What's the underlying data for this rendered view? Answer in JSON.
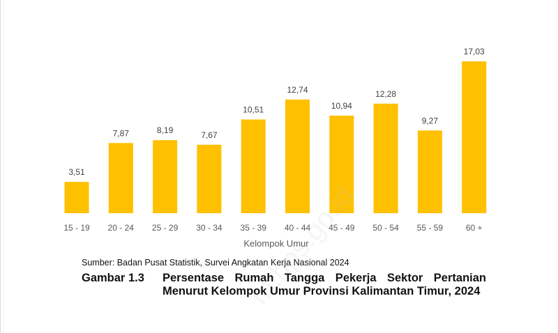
{
  "chart_data": {
    "type": "bar",
    "title": "",
    "xlabel": "Kelompok Umur",
    "ylabel": "",
    "categories": [
      "15 - 19",
      "20 - 24",
      "25 - 29",
      "30 - 34",
      "35 - 39",
      "40 - 44",
      "45 - 49",
      "50 - 54",
      "55 - 59",
      "60 +"
    ],
    "values": [
      3.51,
      7.87,
      8.19,
      7.67,
      10.51,
      12.74,
      10.94,
      12.28,
      9.27,
      17.03
    ],
    "value_labels": [
      "3,51",
      "7,87",
      "8,19",
      "7,67",
      "10,51",
      "12,74",
      "10,94",
      "12,28",
      "9,27",
      "17,03"
    ],
    "ylim": [
      0,
      17.03
    ],
    "grid": false,
    "legend": "none",
    "bar_color": "#FFC000"
  },
  "source_text": "Sumber: Badan Pusat Statistik, Survei Angkatan Kerja Nasional 2024",
  "caption": {
    "number": "Gambar 1.3",
    "text": "Persentase Rumah Tangga Pekerja Sektor Pertanian Menurut Kelompok Umur Provinsi Kalimantan Timur, 2024"
  },
  "watermark": "m.bps.go.id"
}
